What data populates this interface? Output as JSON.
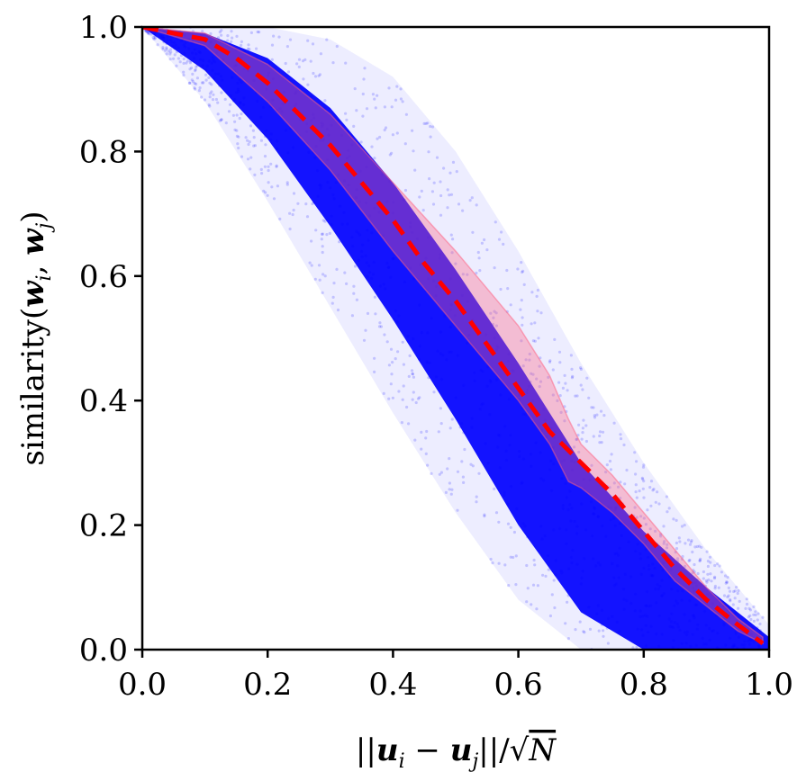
{
  "chart_data": {
    "type": "scatter",
    "title": "",
    "xlabel": "||u_i − u_j||/√N",
    "ylabel": "similarity(w_i, w_j)",
    "xlim": [
      0.0,
      1.0
    ],
    "ylim": [
      0.0,
      1.0
    ],
    "xticks": [
      "0.0",
      "0.2",
      "0.4",
      "0.6",
      "0.8",
      "1.0"
    ],
    "yticks": [
      "0.0",
      "0.2",
      "0.4",
      "0.6",
      "0.8",
      "1.0"
    ],
    "grid": false,
    "legend": "none",
    "scatter_color": "#0000ff",
    "scatter_cloud": {
      "x": [
        0.0,
        0.1,
        0.2,
        0.3,
        0.4,
        0.5,
        0.6,
        0.7,
        0.8,
        0.9,
        1.0
      ],
      "dense_lower": [
        1.0,
        0.93,
        0.82,
        0.68,
        0.53,
        0.37,
        0.2,
        0.06,
        0.0,
        0.0,
        0.0
      ],
      "dense_upper": [
        1.0,
        0.99,
        0.95,
        0.87,
        0.75,
        0.61,
        0.46,
        0.3,
        0.19,
        0.1,
        0.02
      ],
      "sparse_lower": [
        1.0,
        0.88,
        0.72,
        0.55,
        0.38,
        0.22,
        0.08,
        0.0,
        0.0,
        0.0,
        0.0
      ],
      "sparse_upper": [
        1.0,
        1.0,
        1.0,
        0.98,
        0.92,
        0.8,
        0.64,
        0.46,
        0.3,
        0.16,
        0.04
      ]
    },
    "series": [
      {
        "type": "line",
        "style": "dashed",
        "color": "#ff0000",
        "x": [
          0.0,
          0.05,
          0.1,
          0.15,
          0.2,
          0.25,
          0.3,
          0.35,
          0.4,
          0.45,
          0.5,
          0.55,
          0.6,
          0.65,
          0.7,
          0.75,
          0.8,
          0.85,
          0.9,
          0.95,
          0.99
        ],
        "y": [
          1.0,
          0.99,
          0.98,
          0.95,
          0.91,
          0.86,
          0.81,
          0.75,
          0.69,
          0.62,
          0.56,
          0.49,
          0.42,
          0.35,
          0.3,
          0.25,
          0.19,
          0.13,
          0.08,
          0.04,
          0.01
        ]
      }
    ],
    "band": {
      "color": "#ff6080",
      "x": [
        0.0,
        0.1,
        0.2,
        0.3,
        0.4,
        0.5,
        0.6,
        0.65,
        0.68,
        0.7,
        0.75,
        0.8,
        0.85,
        0.9,
        0.95,
        0.99
      ],
      "lower": [
        1.0,
        0.97,
        0.88,
        0.77,
        0.64,
        0.52,
        0.4,
        0.33,
        0.27,
        0.26,
        0.22,
        0.17,
        0.11,
        0.07,
        0.03,
        0.01
      ],
      "upper": [
        1.0,
        0.99,
        0.94,
        0.86,
        0.75,
        0.64,
        0.52,
        0.44,
        0.37,
        0.33,
        0.28,
        0.22,
        0.16,
        0.1,
        0.05,
        0.02
      ]
    }
  }
}
